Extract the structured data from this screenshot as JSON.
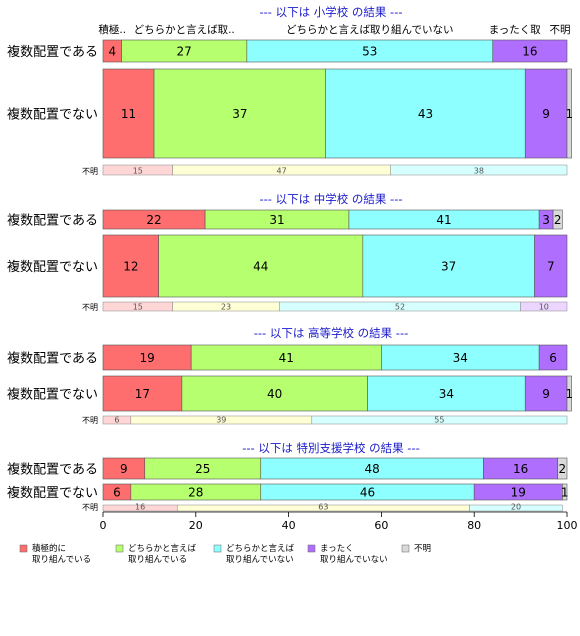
{
  "chart_data": {
    "type": "bar",
    "orientation": "horizontal",
    "stacked": true,
    "xlim": [
      0,
      100
    ],
    "x_ticks": [
      "0",
      "20",
      "40",
      "60",
      "80",
      "100"
    ],
    "category_names": [
      "積極的に取り組んでいる",
      "どちらかと言えば取り組んでいる",
      "どちらかと言えば取り組んでいない",
      "まったく取り組んでいない",
      "不明"
    ],
    "header_labels": [
      "積極..",
      "どちらかと言えば取..",
      "どちらかと言えば取り組んでいない",
      "まったく取",
      "不明"
    ],
    "unknown_label": "不明",
    "colors": [
      "#ff6e6e",
      "#b6ff6e",
      "#8effff",
      "#b06eff",
      "#d9d9d9"
    ],
    "legend": {
      "position": "bottom",
      "entries": [
        {
          "line1": "積極的に",
          "line2": "取り組んでいる"
        },
        {
          "line1": "どちらかと言えば",
          "line2": "取り組んでいる"
        },
        {
          "line1": "どちらかと言えば",
          "line2": "取り組んでいない"
        },
        {
          "line1": "まったく",
          "line2": "取り組んでいない"
        },
        {
          "line1": "不明",
          "line2": ""
        }
      ]
    },
    "panels": [
      {
        "title": "--- 以下は 小学校 の結果 ---",
        "rows": [
          {
            "label": "複数配置である",
            "values": [
              4,
              27,
              53,
              16,
              0
            ]
          },
          {
            "label": "複数配置でない",
            "values": [
              11,
              37,
              43,
              9,
              1
            ]
          }
        ],
        "unknown_values": [
          15,
          47,
          38
        ]
      },
      {
        "title": "--- 以下は 中学校 の結果 ---",
        "rows": [
          {
            "label": "複数配置である",
            "values": [
              22,
              31,
              41,
              3,
              2
            ]
          },
          {
            "label": "複数配置でない",
            "values": [
              12,
              44,
              37,
              7,
              0
            ]
          }
        ],
        "unknown_values": [
          15,
          23,
          52,
          10
        ]
      },
      {
        "title": "--- 以下は 高等学校 の結果 ---",
        "rows": [
          {
            "label": "複数配置である",
            "values": [
              19,
              41,
              34,
              6,
              0
            ]
          },
          {
            "label": "複数配置でない",
            "values": [
              17,
              40,
              34,
              9,
              1
            ]
          }
        ],
        "unknown_values": [
          6,
          39,
          55
        ]
      },
      {
        "title": "--- 以下は 特別支援学校 の結果 ---",
        "rows": [
          {
            "label": "複数配置である",
            "values": [
              9,
              25,
              48,
              16,
              2
            ]
          },
          {
            "label": "複数配置でない",
            "values": [
              6,
              28,
              46,
              19,
              1
            ]
          }
        ],
        "unknown_values": [
          16,
          63,
          20
        ]
      }
    ]
  }
}
